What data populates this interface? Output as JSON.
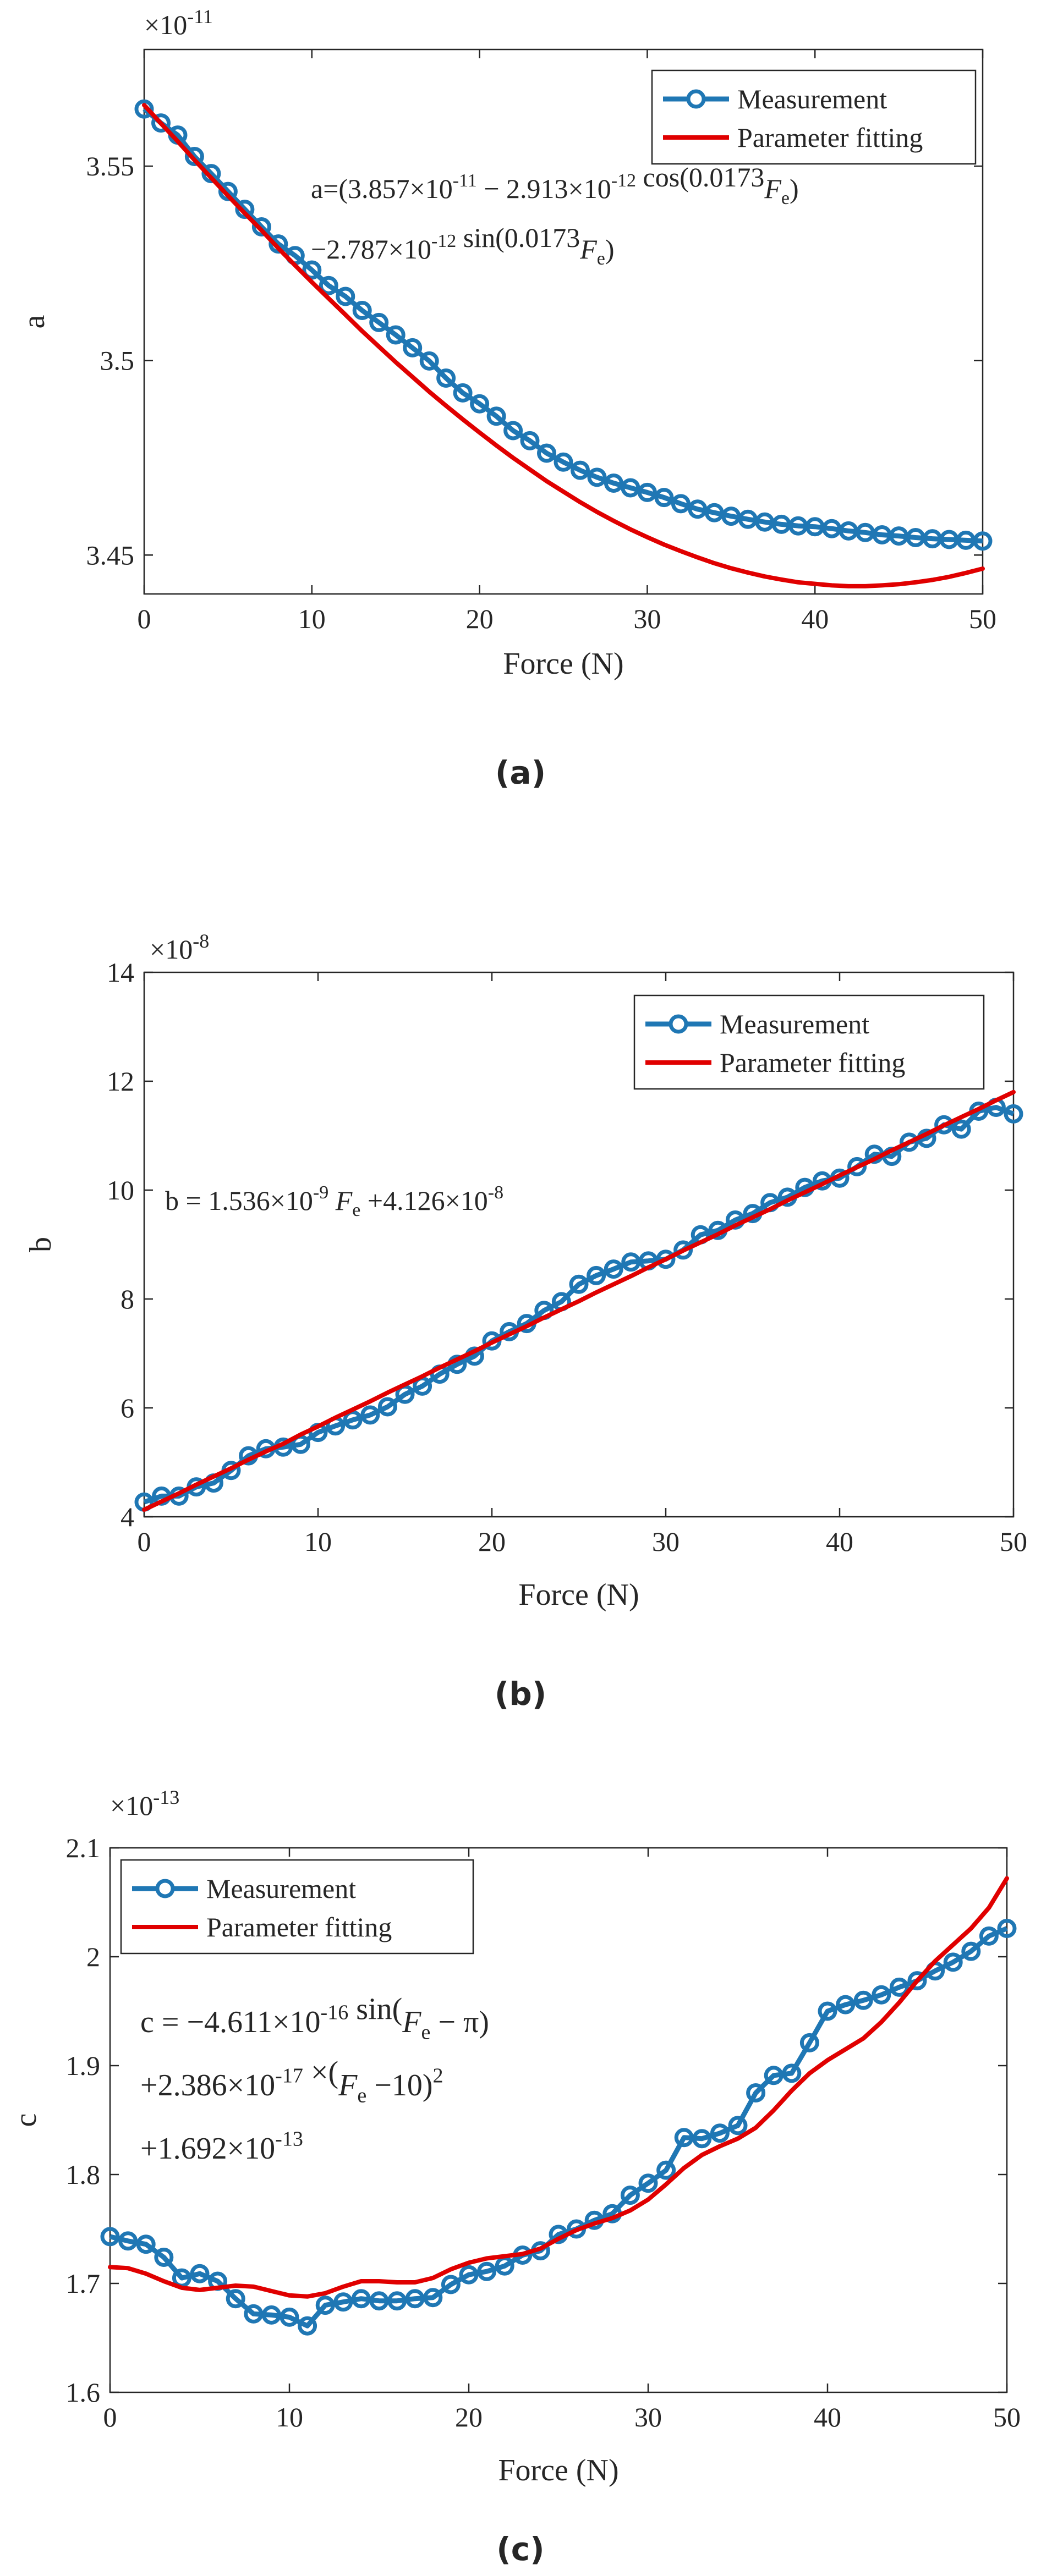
{
  "colors": {
    "measurement": "#1f77b4",
    "fit": "#e00000",
    "axis": "#262626",
    "text": "#262626",
    "background": "#ffffff"
  },
  "chart_data": [
    {
      "type": "line",
      "panel_label": "(a)",
      "title": "",
      "xlabel": "Force (N)",
      "ylabel": "a",
      "exponent_label": "×10",
      "exponent_power": "-11",
      "xlim": [
        0,
        50
      ],
      "ylim": [
        3.44,
        3.58
      ],
      "xticks": [
        0,
        10,
        20,
        30,
        40,
        50
      ],
      "yticks": [
        3.45,
        3.5,
        3.55
      ],
      "ytick_labels": [
        "3.45",
        "3.5",
        "3.55"
      ],
      "legend": [
        "Measurement",
        "Parameter fitting"
      ],
      "legend_position": "top-right",
      "equation_lines": [
        "a=(3.857×10^-11 − 2.913×10^-12 cos(0.0173F_e)",
        "−2.787×10^-12 sin(0.0173F_e)"
      ],
      "x": [
        0,
        1,
        2,
        3,
        4,
        5,
        6,
        7,
        8,
        9,
        10,
        11,
        12,
        13,
        14,
        15,
        16,
        17,
        18,
        19,
        20,
        21,
        22,
        23,
        24,
        25,
        26,
        27,
        28,
        29,
        30,
        31,
        32,
        33,
        34,
        35,
        36,
        37,
        38,
        39,
        40,
        41,
        42,
        43,
        44,
        45,
        46,
        47,
        48,
        49,
        50
      ],
      "series": [
        {
          "name": "Measurement",
          "style": "line-marker",
          "values": [
            3.5647,
            3.5611,
            3.558,
            3.5525,
            3.5481,
            3.5435,
            3.5389,
            3.5344,
            3.53,
            3.527,
            3.5233,
            3.5193,
            3.5165,
            3.5129,
            3.5098,
            3.5066,
            3.5033,
            3.4999,
            3.4955,
            3.4917,
            3.4889,
            3.4857,
            3.482,
            3.4794,
            3.4762,
            3.4739,
            3.4718,
            3.47,
            3.4685,
            3.4673,
            3.4661,
            3.4648,
            3.4632,
            3.4618,
            3.4609,
            3.46,
            3.4592,
            3.4585,
            3.4579,
            3.4575,
            3.4573,
            3.4568,
            3.4562,
            3.4558,
            3.4552,
            3.4549,
            3.4545,
            3.4542,
            3.454,
            3.4538,
            3.4536
          ]
        },
        {
          "name": "Parameter fitting",
          "style": "line",
          "values": [
            3.5657,
            3.561,
            3.5564,
            3.5516,
            3.547,
            3.5424,
            3.5379,
            3.5335,
            3.5289,
            3.5245,
            3.5202,
            3.516,
            3.5118,
            3.5076,
            3.5036,
            3.4996,
            3.4958,
            3.492,
            3.4884,
            3.4849,
            3.4815,
            3.4782,
            3.475,
            3.472,
            3.469,
            3.4663,
            3.4636,
            3.4611,
            3.4588,
            3.4566,
            3.4546,
            3.4527,
            3.451,
            3.4494,
            3.4479,
            3.4466,
            3.4455,
            3.4445,
            3.4437,
            3.443,
            3.4426,
            3.4422,
            3.442,
            3.442,
            3.4422,
            3.4425,
            3.443,
            3.4436,
            3.4444,
            3.4454,
            3.4465
          ]
        }
      ]
    },
    {
      "type": "line",
      "panel_label": "(b)",
      "title": "",
      "xlabel": "Force (N)",
      "ylabel": "b",
      "exponent_label": "×10",
      "exponent_power": "-8",
      "xlim": [
        0,
        50
      ],
      "ylim": [
        4,
        14
      ],
      "xticks": [
        0,
        10,
        20,
        30,
        40,
        50
      ],
      "yticks": [
        4,
        6,
        8,
        10,
        12,
        14
      ],
      "ytick_labels": [
        "4",
        "6",
        "8",
        "10",
        "12",
        "14"
      ],
      "legend": [
        "Measurement",
        "Parameter fitting"
      ],
      "legend_position": "top-right",
      "equation_lines": [
        "b = 1.536×10^-9 F_e +4.126×10^-8"
      ],
      "x": [
        0,
        1,
        2,
        3,
        4,
        5,
        6,
        7,
        8,
        9,
        10,
        11,
        12,
        13,
        14,
        15,
        16,
        17,
        18,
        19,
        20,
        21,
        22,
        23,
        24,
        25,
        26,
        27,
        28,
        29,
        30,
        31,
        32,
        33,
        34,
        35,
        36,
        37,
        38,
        39,
        40,
        41,
        42,
        43,
        44,
        45,
        46,
        47,
        48,
        49,
        50
      ],
      "series": [
        {
          "name": "Measurement",
          "style": "line-marker",
          "values": [
            4.27,
            4.38,
            4.38,
            4.55,
            4.62,
            4.85,
            5.12,
            5.25,
            5.28,
            5.33,
            5.55,
            5.67,
            5.78,
            5.87,
            6.02,
            6.25,
            6.4,
            6.62,
            6.8,
            6.95,
            7.23,
            7.4,
            7.55,
            7.79,
            7.95,
            8.27,
            8.43,
            8.55,
            8.68,
            8.7,
            8.73,
            8.9,
            9.18,
            9.26,
            9.45,
            9.57,
            9.77,
            9.87,
            10.05,
            10.17,
            10.22,
            10.43,
            10.66,
            10.62,
            10.88,
            10.95,
            11.2,
            11.12,
            11.45,
            11.52,
            11.4
          ]
        },
        {
          "name": "Parameter fitting",
          "style": "line",
          "values": [
            4.13,
            4.28,
            4.43,
            4.59,
            4.74,
            4.89,
            5.05,
            5.2,
            5.34,
            5.51,
            5.66,
            5.82,
            5.97,
            6.12,
            6.28,
            6.43,
            6.58,
            6.74,
            6.89,
            7.04,
            7.2,
            7.35,
            7.5,
            7.66,
            7.81,
            7.96,
            8.12,
            8.27,
            8.42,
            8.58,
            8.73,
            8.89,
            9.04,
            9.19,
            9.35,
            9.5,
            9.65,
            9.81,
            9.96,
            10.11,
            10.27,
            10.42,
            10.57,
            10.73,
            10.88,
            11.03,
            11.19,
            11.34,
            11.49,
            11.65,
            11.8
          ]
        }
      ]
    },
    {
      "type": "line",
      "panel_label": "(c)",
      "title": "",
      "xlabel": "Force (N)",
      "ylabel": "c",
      "exponent_label": "×10",
      "exponent_power": "-13",
      "xlim": [
        0,
        50
      ],
      "ylim": [
        1.6,
        2.1
      ],
      "xticks": [
        0,
        10,
        20,
        30,
        40,
        50
      ],
      "yticks": [
        1.6,
        1.7,
        1.8,
        1.9,
        2.0,
        2.1
      ],
      "ytick_labels": [
        "1.6",
        "1.7",
        "1.8",
        "1.9",
        "2",
        "2.1"
      ],
      "legend": [
        "Measurement",
        "Parameter fitting"
      ],
      "legend_position": "top-left",
      "equation_lines": [
        "c = −4.611×10^-16 sin(F_e − π)",
        "+2.386×10^-17 ×(F_e −10)^2",
        "+1.692×10^-13"
      ],
      "x": [
        0,
        1,
        2,
        3,
        4,
        5,
        6,
        7,
        8,
        9,
        10,
        11,
        12,
        13,
        14,
        15,
        16,
        17,
        18,
        19,
        20,
        21,
        22,
        23,
        24,
        25,
        26,
        27,
        28,
        29,
        30,
        31,
        32,
        33,
        34,
        35,
        36,
        37,
        38,
        39,
        40,
        41,
        42,
        43,
        44,
        45,
        46,
        47,
        48,
        49,
        50
      ],
      "series": [
        {
          "name": "Measurement",
          "style": "line-marker",
          "values": [
            1.743,
            1.739,
            1.736,
            1.724,
            1.705,
            1.709,
            1.702,
            1.686,
            1.672,
            1.671,
            1.669,
            1.661,
            1.68,
            1.683,
            1.686,
            1.684,
            1.684,
            1.686,
            1.687,
            1.699,
            1.708,
            1.711,
            1.716,
            1.726,
            1.73,
            1.745,
            1.75,
            1.758,
            1.764,
            1.781,
            1.792,
            1.804,
            1.834,
            1.833,
            1.838,
            1.845,
            1.875,
            1.891,
            1.893,
            1.921,
            1.95,
            1.956,
            1.96,
            1.965,
            1.972,
            1.978,
            1.987,
            1.995,
            2.005,
            2.019,
            2.026
          ]
        },
        {
          "name": "Parameter fitting",
          "style": "line",
          "values": [
            1.715,
            1.714,
            1.709,
            1.702,
            1.696,
            1.694,
            1.696,
            1.698,
            1.697,
            1.693,
            1.689,
            1.688,
            1.691,
            1.697,
            1.702,
            1.702,
            1.701,
            1.701,
            1.705,
            1.713,
            1.719,
            1.723,
            1.725,
            1.727,
            1.732,
            1.741,
            1.749,
            1.755,
            1.76,
            1.767,
            1.777,
            1.791,
            1.806,
            1.818,
            1.826,
            1.833,
            1.843,
            1.859,
            1.877,
            1.893,
            1.905,
            1.915,
            1.925,
            1.94,
            1.958,
            1.978,
            1.996,
            2.011,
            2.026,
            2.045,
            2.072
          ]
        }
      ]
    }
  ]
}
